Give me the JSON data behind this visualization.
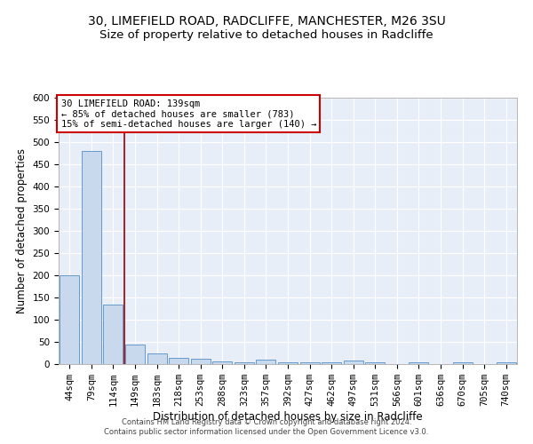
{
  "title1": "30, LIMEFIELD ROAD, RADCLIFFE, MANCHESTER, M26 3SU",
  "title2": "Size of property relative to detached houses in Radcliffe",
  "xlabel": "Distribution of detached houses by size in Radcliffe",
  "ylabel": "Number of detached properties",
  "footnote1": "Contains HM Land Registry data © Crown copyright and database right 2024.",
  "footnote2": "Contains public sector information licensed under the Open Government Licence v3.0.",
  "annotation_line1": "30 LIMEFIELD ROAD: 139sqm",
  "annotation_line2": "← 85% of detached houses are smaller (783)",
  "annotation_line3": "15% of semi-detached houses are larger (140) →",
  "bar_labels": [
    "44sqm",
    "79sqm",
    "114sqm",
    "149sqm",
    "183sqm",
    "218sqm",
    "253sqm",
    "288sqm",
    "323sqm",
    "357sqm",
    "392sqm",
    "427sqm",
    "462sqm",
    "497sqm",
    "531sqm",
    "566sqm",
    "601sqm",
    "636sqm",
    "670sqm",
    "705sqm",
    "740sqm"
  ],
  "bar_values": [
    200,
    480,
    135,
    45,
    25,
    15,
    12,
    6,
    4,
    10,
    4,
    5,
    5,
    8,
    4,
    0,
    5,
    0,
    4,
    0,
    4
  ],
  "bar_color": "#c8d9ee",
  "bar_edge_color": "#6699cc",
  "vline_color": "#990000",
  "vline_x": 2.5,
  "ylim": [
    0,
    600
  ],
  "yticks": [
    0,
    50,
    100,
    150,
    200,
    250,
    300,
    350,
    400,
    450,
    500,
    550,
    600
  ],
  "bg_color": "#e8eef8",
  "annotation_box_color": "#cc0000",
  "title1_fontsize": 10,
  "title2_fontsize": 9.5,
  "axis_label_fontsize": 8.5,
  "tick_fontsize": 7.5,
  "annotation_fontsize": 7.5,
  "footnote_fontsize": 6,
  "grid_color": "#ffffff"
}
